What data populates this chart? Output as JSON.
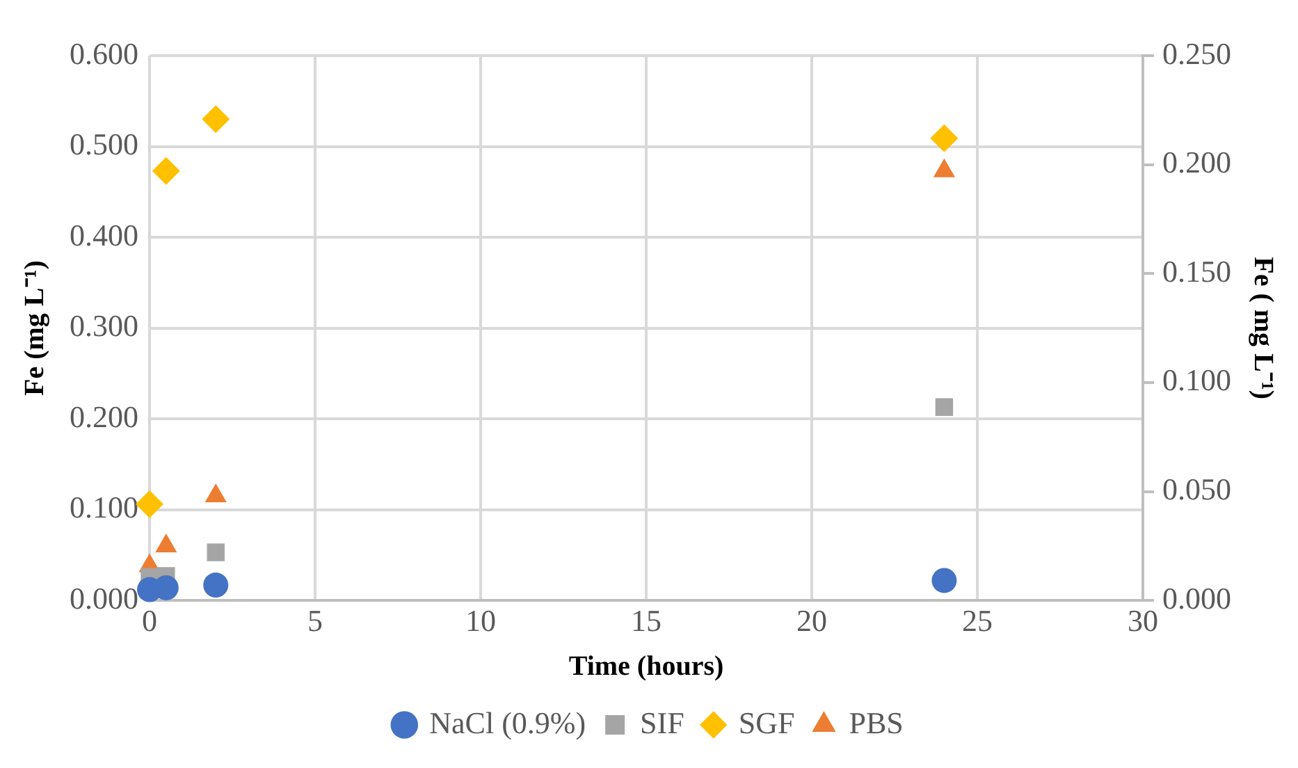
{
  "chart_data": {
    "type": "scatter",
    "xlabel": "Time (hours)",
    "ylabel": "Fe (mg L⁻¹)",
    "y2label": "Fe ( mg L⁻¹)",
    "xlim": [
      0,
      30
    ],
    "xticks": [
      0,
      5,
      10,
      15,
      20,
      25,
      30
    ],
    "ylim": [
      0,
      0.6
    ],
    "yticks": [
      {
        "value": 0,
        "label": "0.000"
      },
      {
        "value": 0.1,
        "label": "0.100"
      },
      {
        "value": 0.2,
        "label": "0.200"
      },
      {
        "value": 0.3,
        "label": "0.300"
      },
      {
        "value": 0.4,
        "label": "0.400"
      },
      {
        "value": 0.5,
        "label": "0.500"
      },
      {
        "value": 0.6,
        "label": "0.600"
      }
    ],
    "y2lim": [
      0,
      0.25
    ],
    "y2ticks": [
      {
        "value": 0,
        "label": "0.000"
      },
      {
        "value": 0.05,
        "label": "0.050"
      },
      {
        "value": 0.1,
        "label": "0.100"
      },
      {
        "value": 0.15,
        "label": "0.150"
      },
      {
        "value": 0.2,
        "label": "0.200"
      },
      {
        "value": 0.25,
        "label": "0.250"
      }
    ],
    "grid": true,
    "legend": "bottom",
    "series": [
      {
        "name": "NaCl (0.9%)",
        "color": "#4472c4",
        "marker": "circle",
        "x": [
          0,
          0.5,
          2,
          24
        ],
        "values": [
          0.012,
          0.014,
          0.017,
          0.022
        ]
      },
      {
        "name": "SIF",
        "color": "#a5a5a5",
        "marker": "square",
        "x": [
          0,
          0.5,
          2,
          24
        ],
        "values": [
          0.026,
          0.027,
          0.053,
          0.213
        ]
      },
      {
        "name": "SGF",
        "color": "#ffc000",
        "marker": "diamond",
        "x": [
          0,
          0.5,
          2,
          24
        ],
        "values": [
          0.106,
          0.473,
          0.53,
          0.509
        ]
      },
      {
        "name": "PBS",
        "color": "#ed7d31",
        "marker": "triangle",
        "x": [
          0,
          0.5,
          2,
          24
        ],
        "values": [
          0.038,
          0.06,
          0.115,
          0.473
        ]
      }
    ]
  }
}
